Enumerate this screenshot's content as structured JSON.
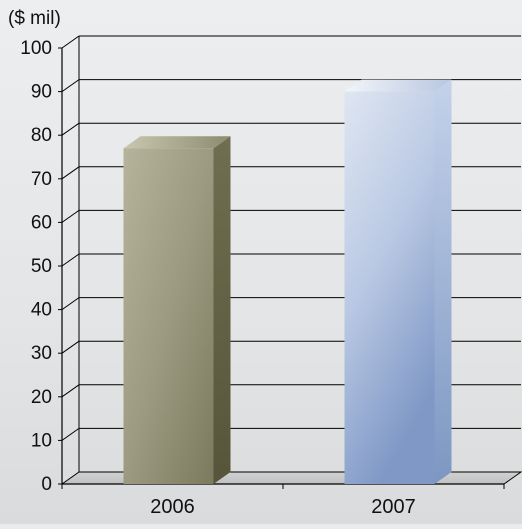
{
  "chart_data": {
    "type": "bar",
    "ylabel": "($ mil)",
    "categories": [
      "2006",
      "2007"
    ],
    "values": [
      77,
      90
    ],
    "ylim": [
      0,
      100
    ],
    "yticks": [
      0,
      10,
      20,
      30,
      40,
      50,
      60,
      70,
      80,
      90,
      100
    ],
    "grid": true,
    "colors": {
      "bar_2006": "#9c9a80",
      "bar_2007": "#a9bcdc",
      "background": "#e9ebec",
      "gridline": "#000000"
    }
  }
}
